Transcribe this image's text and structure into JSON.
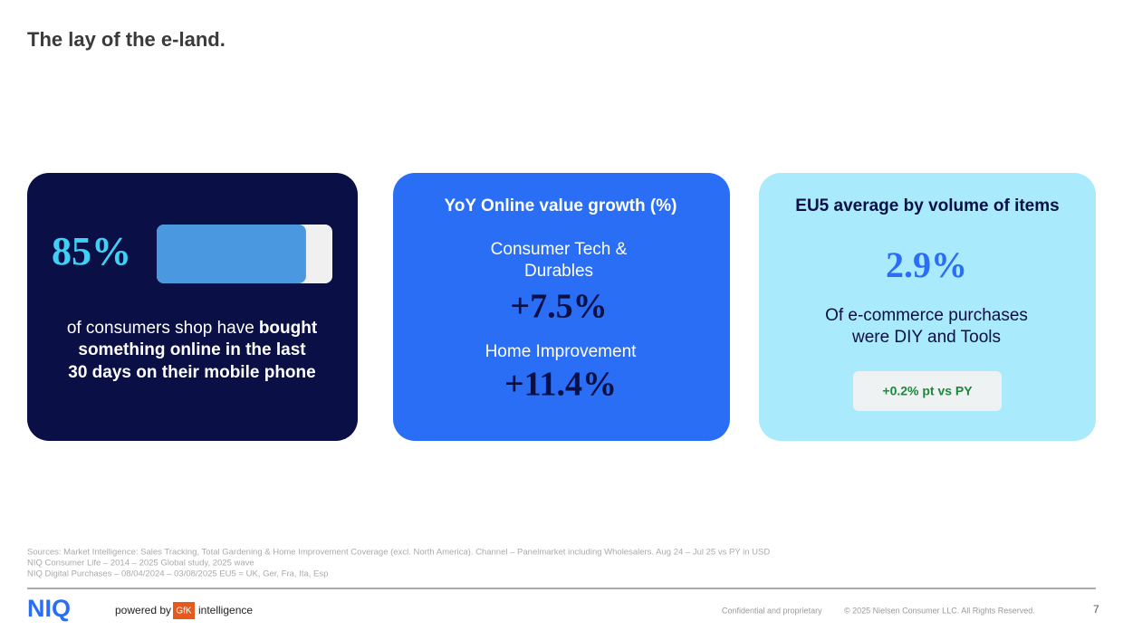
{
  "header": {
    "title": "The lay of the e-land."
  },
  "cards": [
    {
      "stat": {
        "value": 85,
        "label": "85%"
      },
      "body": {
        "normal": "of consumers shop have",
        "bold": [
          "bought",
          "something online in the last",
          "30 days on their mobile phone"
        ]
      }
    },
    {
      "title": "YoY Online value growth (%)",
      "items": [
        {
          "label": [
            "Consumer Tech &",
            "Durables"
          ],
          "value": "+7.5%"
        },
        {
          "label": [
            "Home Improvement"
          ],
          "value": "+11.4%"
        }
      ]
    },
    {
      "title": "EU5 average by volume of items",
      "value": "2.9%",
      "text": [
        "Of e-commerce purchases",
        "were DIY and Tools"
      ],
      "badge": "+0.2% pt vs PY"
    }
  ],
  "footer": {
    "sources": [
      "Sources: Market Intelligence: Sales Tracking, Total Gardening & Home Improvement Coverage (excl. North America). Channel – Panelmarket including Wholesalers. Aug 24 – Jul 25 vs PY in USD",
      "NIQ Consumer Life – 2014 – 2025 Global study, 2025 wave",
      "NIQ Digital Purchases – 08/04/2024 – 03/08/2025 EU5  = UK, Ger, Fra, Ita, Esp"
    ],
    "logo": "NIQ",
    "powered_by": "powered by",
    "gfk": "GfK",
    "intelligence": "intelligence",
    "confidential": "Confidential and proprietary",
    "copyright": "© 2025 Nielsen Consumer LLC. All Rights Reserved.",
    "page": "7"
  }
}
